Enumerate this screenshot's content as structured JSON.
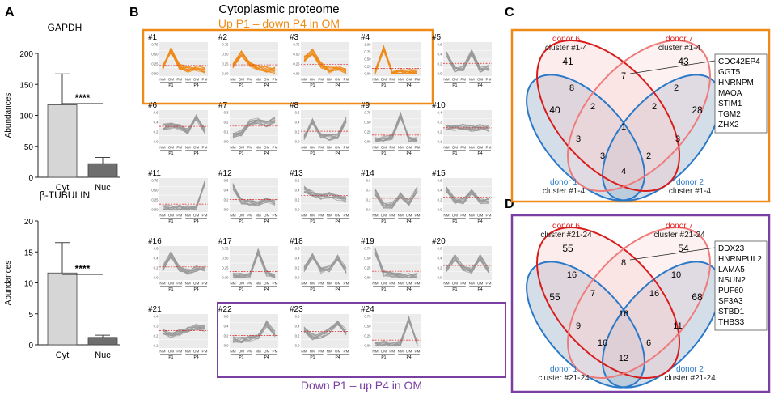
{
  "panel_letters": {
    "a": "A",
    "b": "B",
    "c": "C",
    "d": "D"
  },
  "panelA": {
    "chart_data": [
      {
        "type": "bar",
        "title": "GAPDH",
        "ylabel": "Abundances",
        "categories": [
          "Cyt",
          "Nuc"
        ],
        "values": [
          117,
          22
        ],
        "errors": [
          50,
          10
        ],
        "colors": [
          "#d6d6d6",
          "#6e6e6e"
        ],
        "ylim": [
          0,
          200
        ],
        "yticks": [
          "0",
          "50",
          "100",
          "150",
          "200"
        ],
        "significance": "****"
      },
      {
        "type": "bar",
        "title": "β-TUBULIN",
        "ylabel": "Abundances",
        "categories": [
          "Cyt",
          "Nuc"
        ],
        "values": [
          11.6,
          1.2
        ],
        "errors": [
          4.9,
          0.35
        ],
        "colors": [
          "#d6d6d6",
          "#6e6e6e"
        ],
        "ylim": [
          0,
          20
        ],
        "yticks": [
          "0",
          "5",
          "10",
          "15",
          "20"
        ],
        "significance": "****"
      }
    ]
  },
  "panelB": {
    "title": "Cytoplasmic proteome",
    "top_label": "Up P1 – down P4 in OM",
    "bottom_label": "Down P1 – up P4 in OM",
    "orange": "#f08a16",
    "purple": "#7a3fa0",
    "gray_line": "#9a9a9a",
    "x_ticks": [
      "NM",
      "OM",
      "PM",
      "NM",
      "OM",
      "PM"
    ],
    "group_labels": [
      "P1",
      "P4"
    ],
    "clusters": [
      {
        "id": "#1",
        "profile": [
          0.2,
          0.82,
          0.25,
          0.15,
          0.18,
          0.1
        ],
        "yticks": [
          "0.75",
          "0.50",
          "0.25",
          "0.00"
        ]
      },
      {
        "id": "#2",
        "profile": [
          0.3,
          0.7,
          0.35,
          0.2,
          0.15,
          0.12
        ],
        "yticks": [
          "0.75",
          "0.50",
          "0.25",
          "0.00"
        ]
      },
      {
        "id": "#3",
        "profile": [
          0.5,
          0.75,
          0.3,
          0.12,
          0.18,
          0.1
        ],
        "yticks": [
          "0.75",
          "0.50",
          "0.25",
          "0.00"
        ]
      },
      {
        "id": "#4",
        "profile": [
          0.05,
          0.85,
          0.05,
          0.05,
          0.05,
          0.05
        ],
        "yticks": [
          "1.00",
          "0.75",
          "0.50",
          "0.25",
          "0.00"
        ]
      },
      {
        "id": "#5",
        "profile": [
          0.7,
          0.15,
          0.2,
          0.72,
          0.15,
          0.2
        ],
        "yticks": [
          "0.6",
          "0.4",
          "0.2",
          "0.0"
        ]
      },
      {
        "id": "#6",
        "profile": [
          0.5,
          0.55,
          0.5,
          0.35,
          0.85,
          0.4
        ],
        "yticks": [
          "0.6",
          "0.4",
          "0.2",
          "0.0"
        ]
      },
      {
        "id": "#7",
        "profile": [
          0.2,
          0.3,
          0.65,
          0.7,
          0.6,
          0.75
        ],
        "yticks": [
          "0.3",
          "0.2",
          "0.1",
          "0.0"
        ]
      },
      {
        "id": "#8",
        "profile": [
          0.15,
          0.7,
          0.2,
          0.15,
          0.2,
          0.75
        ],
        "yticks": [
          "0.6",
          "0.4",
          "0.2",
          "0.0"
        ]
      },
      {
        "id": "#9",
        "profile": [
          0.05,
          0.1,
          0.15,
          0.9,
          0.1,
          0.05
        ],
        "yticks": [
          "0.75",
          "0.50",
          "0.25",
          "0.00"
        ]
      },
      {
        "id": "#10",
        "profile": [
          0.5,
          0.45,
          0.5,
          0.45,
          0.5,
          0.45
        ],
        "yticks": [
          "0.4",
          "0.3",
          "0.2",
          "0.1"
        ]
      },
      {
        "id": "#11",
        "profile": [
          0.05,
          0.05,
          0.05,
          0.05,
          0.05,
          0.9
        ],
        "yticks": [
          "0.75",
          "0.50",
          "0.25",
          "0.00"
        ]
      },
      {
        "id": "#12",
        "profile": [
          0.8,
          0.3,
          0.25,
          0.2,
          0.3,
          0.25
        ],
        "yticks": [
          "0.6",
          "0.4",
          "0.2",
          "0.0"
        ]
      },
      {
        "id": "#13",
        "profile": [
          0.7,
          0.55,
          0.45,
          0.5,
          0.4,
          0.35
        ],
        "yticks": [
          "0.6",
          "0.4",
          "0.2",
          "0.0"
        ]
      },
      {
        "id": "#14",
        "profile": [
          0.6,
          0.15,
          0.15,
          0.5,
          0.25,
          0.7
        ],
        "yticks": [
          "0.6",
          "0.4",
          "0.2",
          "0.0"
        ]
      },
      {
        "id": "#15",
        "profile": [
          0.7,
          0.3,
          0.3,
          0.65,
          0.3,
          0.3
        ],
        "yticks": [
          "0.6",
          "0.4",
          "0.2",
          "0.0"
        ]
      },
      {
        "id": "#16",
        "profile": [
          0.3,
          0.8,
          0.3,
          0.2,
          0.3,
          0.3
        ],
        "yticks": [
          "0.6",
          "0.4",
          "0.2",
          "0.0"
        ]
      },
      {
        "id": "#17",
        "profile": [
          0.05,
          0.05,
          0.05,
          0.9,
          0.15,
          0.05
        ],
        "yticks": [
          "0.75",
          "0.50",
          "0.25",
          "0.00"
        ]
      },
      {
        "id": "#18",
        "profile": [
          0.3,
          0.75,
          0.25,
          0.3,
          0.7,
          0.25
        ],
        "yticks": [
          "0.6",
          "0.4",
          "0.2",
          "0.0"
        ]
      },
      {
        "id": "#19",
        "profile": [
          0.9,
          0.15,
          0.1,
          0.05,
          0.05,
          0.05
        ],
        "yticks": [
          "0.75",
          "0.50",
          "0.25",
          "0.00"
        ]
      },
      {
        "id": "#20",
        "profile": [
          0.3,
          0.7,
          0.3,
          0.25,
          0.7,
          0.25
        ],
        "yticks": [
          "0.6",
          "0.4",
          "0.2",
          "0.0"
        ]
      },
      {
        "id": "#21",
        "profile": [
          0.5,
          0.35,
          0.45,
          0.55,
          0.65,
          0.6
        ],
        "yticks": [
          "0.4",
          "0.3",
          "0.2",
          "0.1"
        ]
      },
      {
        "id": "#22",
        "profile": [
          0.2,
          0.2,
          0.25,
          0.3,
          0.75,
          0.4
        ],
        "yticks": [
          "0.6",
          "0.4",
          "0.2",
          "0.0"
        ]
      },
      {
        "id": "#23",
        "profile": [
          0.55,
          0.3,
          0.35,
          0.5,
          0.75,
          0.45
        ],
        "yticks": [
          "0.6",
          "0.4",
          "0.2",
          "0.0"
        ]
      },
      {
        "id": "#24",
        "profile": [
          0.05,
          0.05,
          0.05,
          0.05,
          0.9,
          0.05
        ],
        "yticks": [
          "0.75",
          "0.50",
          "0.25",
          "0.00"
        ]
      }
    ]
  },
  "panelC": {
    "frame_color": "#f08a16",
    "sets": [
      {
        "name": "donor 6",
        "sub": "cluster #1-4",
        "color": "#e02020"
      },
      {
        "name": "donor 7",
        "sub": "cluster #1-4",
        "color": "#e02020"
      },
      {
        "name": "donor 1",
        "sub": "cluster #1-4",
        "color": "#2a78c8"
      },
      {
        "name": "donor 2",
        "sub": "cluster #1-4",
        "color": "#2a78c8"
      }
    ],
    "regions": {
      "d6_only": "41",
      "d7_only": "43",
      "d1_only": "40",
      "d2_only": "28",
      "d6_d7": "7",
      "d6_d1": "8",
      "d7_d2": "2",
      "d1_d2": "4",
      "d6_d2": "3",
      "d7_d1": "3",
      "d6_d7_d1": "2",
      "d6_d7_d2": "2",
      "d6_d1_d2": "2",
      "d7_d1_d2": "3",
      "all": "1"
    },
    "genes": [
      "CDC42EP4",
      "GGT5",
      "HNRNPM",
      "MAOA",
      "STIM1",
      "TGM2",
      "ZHX2"
    ]
  },
  "panelD": {
    "frame_color": "#7a3fa0",
    "sets": [
      {
        "name": "donor 6",
        "sub": "cluster #21-24",
        "color": "#e02020"
      },
      {
        "name": "donor 7",
        "sub": "cluster #21-24",
        "color": "#e02020"
      },
      {
        "name": "donor 1",
        "sub": "cluster #21-24",
        "color": "#2a78c8"
      },
      {
        "name": "donor 2",
        "sub": "cluster #21-24",
        "color": "#2a78c8"
      }
    ],
    "regions": {
      "d6_only": "55",
      "d7_only": "54",
      "d1_only": "55",
      "d2_only": "68",
      "d6_d7": "8",
      "d6_d1": "16",
      "d7_d2": "10",
      "d1_d2": "12",
      "d6_d2": "11",
      "d7_d1": "9",
      "d6_d7_d1": "7",
      "d6_d7_d2": "16",
      "d6_d1_d2": "6",
      "d7_d1_d2": "16",
      "all": "16"
    },
    "genes": [
      "DDX23",
      "HNRNPUL2",
      "LAMA5",
      "NSUN2",
      "PUF60",
      "SF3A3",
      "STBD1",
      "THBS3"
    ]
  }
}
